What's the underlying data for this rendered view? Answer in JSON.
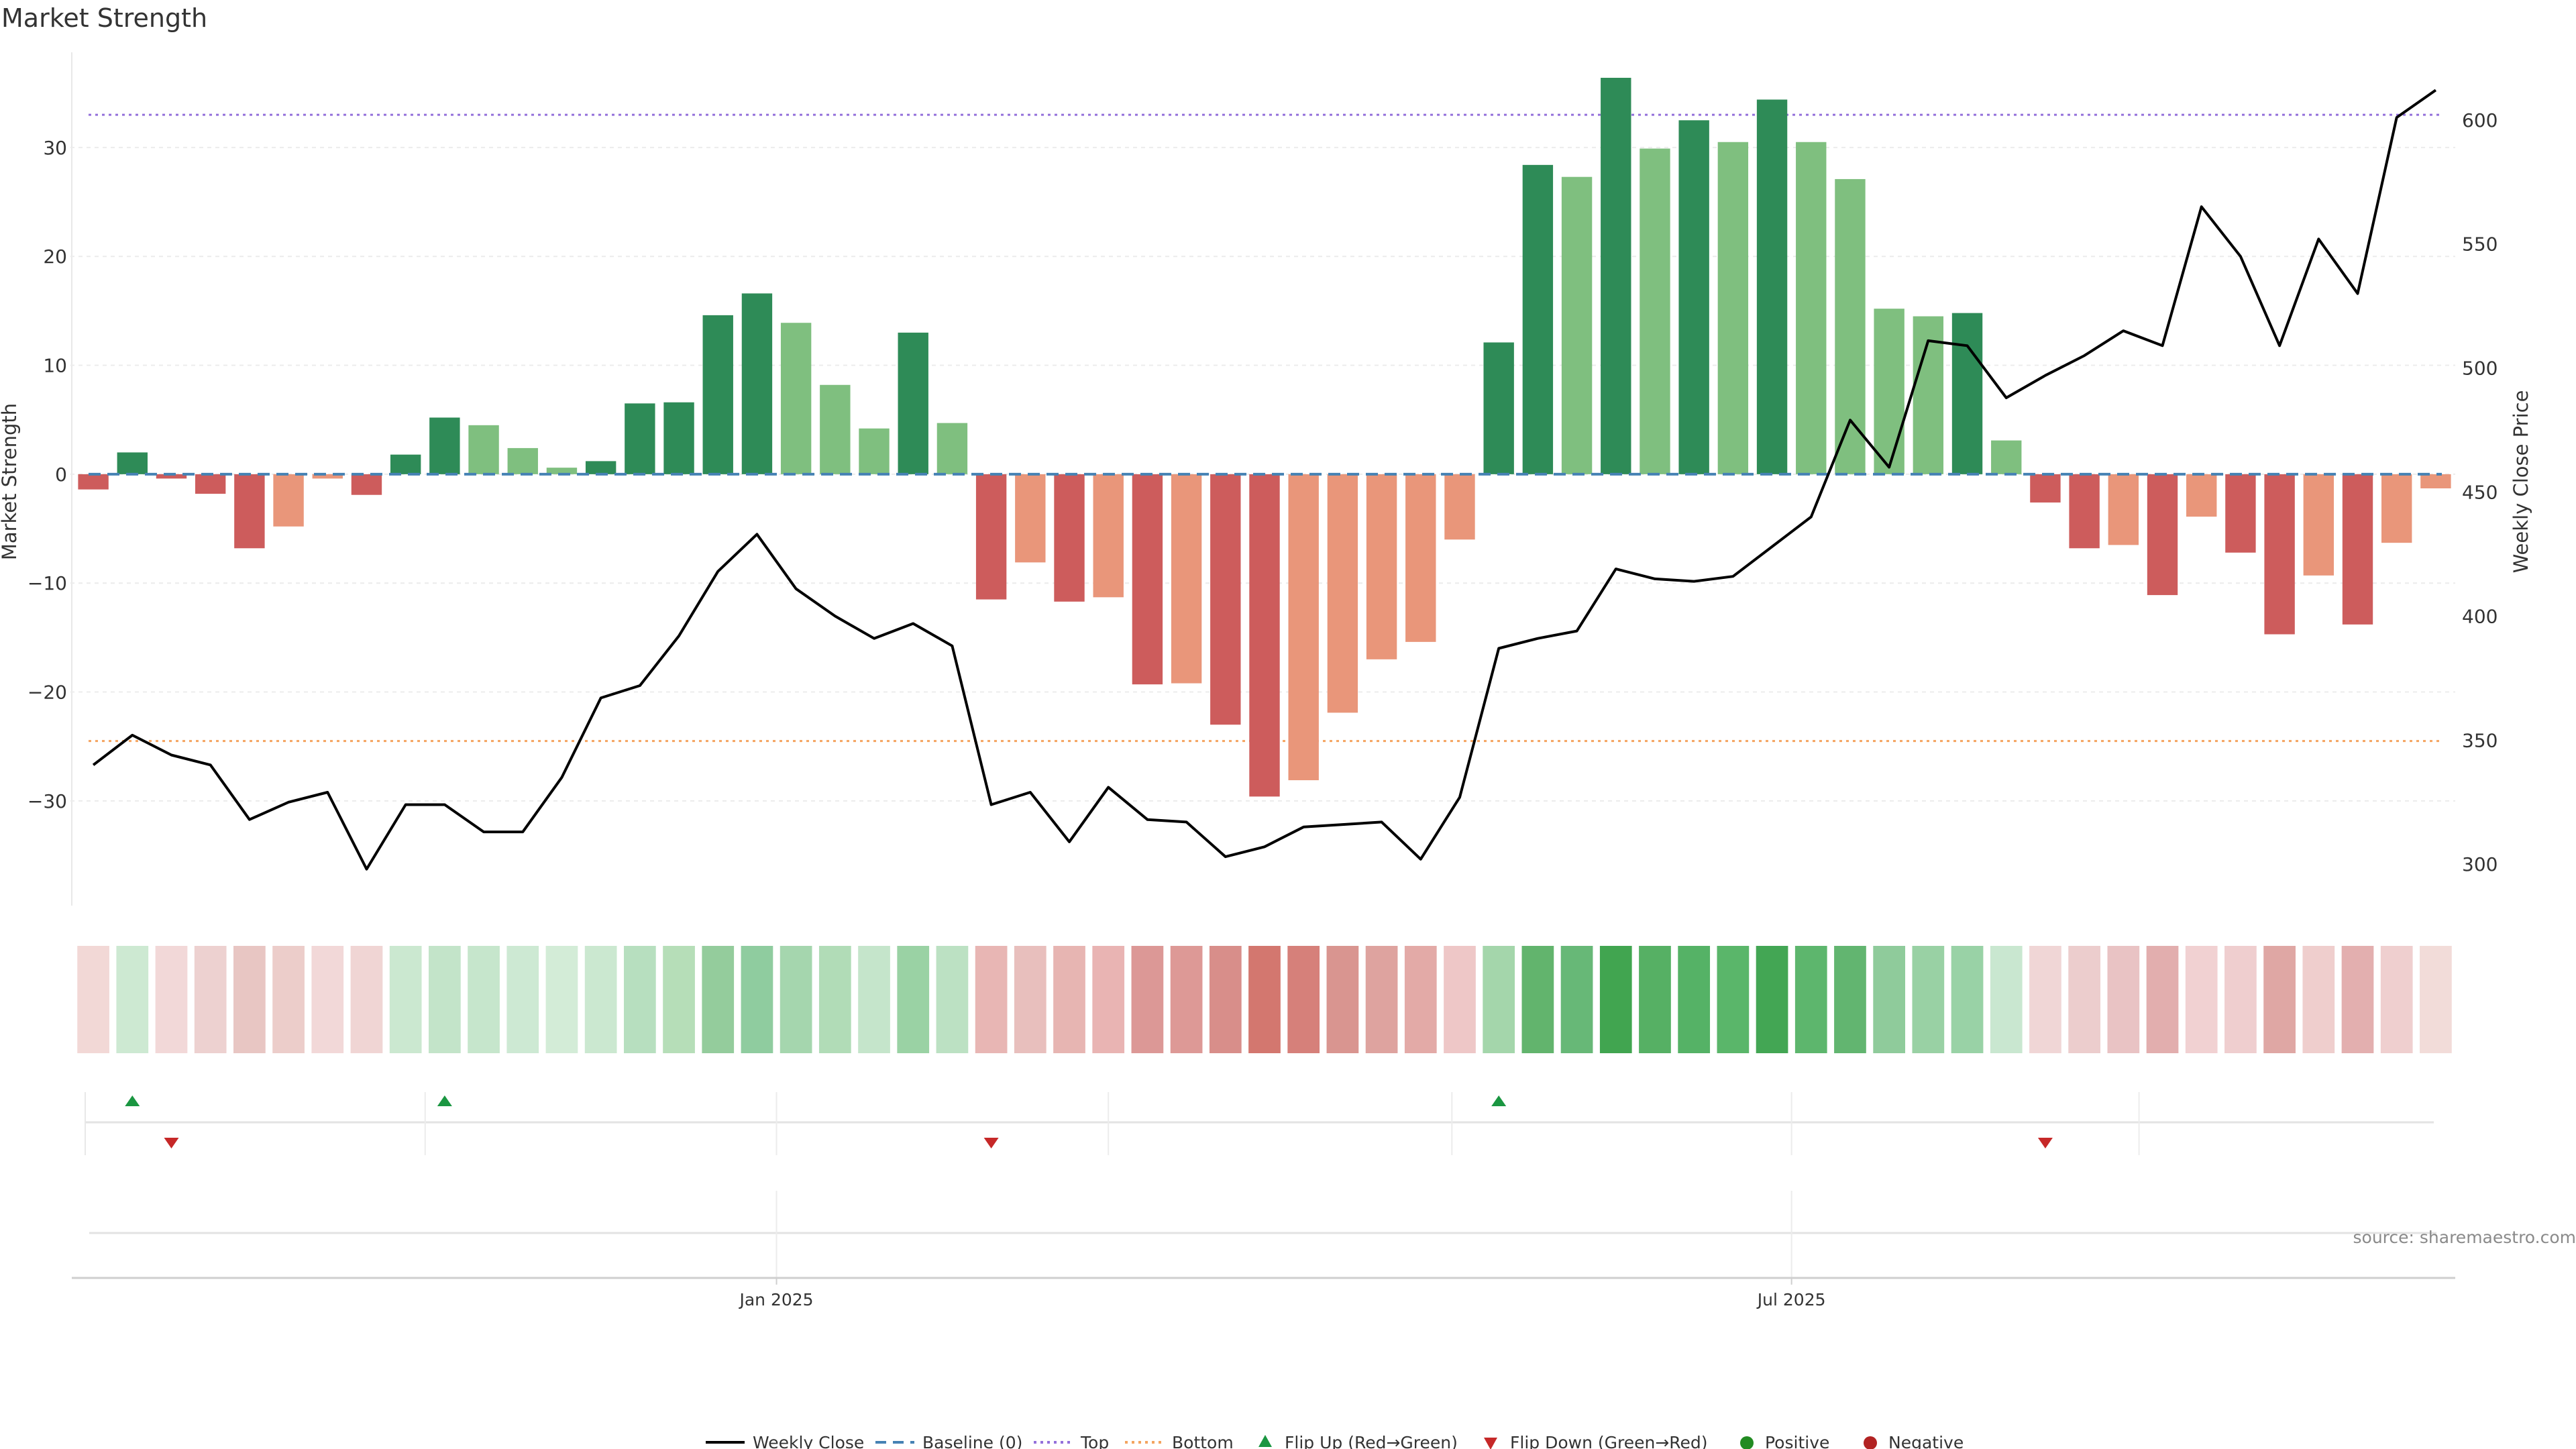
{
  "chart_data": {
    "type": "bar",
    "title": "Market Strength",
    "ylabel": "Market Strength",
    "y2label": "Weekly Close Price",
    "ylim": [
      -39,
      38
    ],
    "y2lim": [
      286,
      624
    ],
    "yticks": [
      30,
      20,
      10,
      0,
      -10,
      -20,
      -30
    ],
    "yticks_labels": [
      "30",
      "20",
      "10",
      "0",
      "−10",
      "−20",
      "−30"
    ],
    "y2ticks": [
      600,
      550,
      500,
      450,
      400,
      350,
      300
    ],
    "y2ticks_labels": [
      "600",
      "550",
      "500",
      "450",
      "400",
      "350",
      "300"
    ],
    "top_line": 33.0,
    "bottom_line": -24.5,
    "baseline": 0,
    "x_ticks": [
      {
        "label": "Jan 2025",
        "index": 17.5
      },
      {
        "label": "Jul 2025",
        "index": 43.5
      }
    ],
    "strength": [
      -1.4,
      2.0,
      -0.4,
      -1.8,
      -6.8,
      -4.8,
      -0.4,
      -1.9,
      1.8,
      5.2,
      4.5,
      2.4,
      0.6,
      1.2,
      6.5,
      6.6,
      14.6,
      16.6,
      13.9,
      8.2,
      4.2,
      13.0,
      4.7,
      -11.5,
      -8.1,
      -11.7,
      -11.3,
      -19.3,
      -19.2,
      -23.0,
      -29.6,
      -28.1,
      -21.9,
      -17.0,
      -15.4,
      -6.0,
      12.1,
      28.4,
      27.3,
      36.4,
      29.9,
      32.5,
      30.5,
      34.4,
      30.5,
      27.1,
      15.2,
      14.5,
      14.8,
      3.1,
      -2.6,
      -6.8,
      -6.5,
      -11.1,
      -3.9,
      -7.2,
      -14.7,
      -9.3,
      -13.8,
      -6.3,
      -1.3
    ],
    "close": [
      340,
      352,
      344,
      340,
      318,
      325,
      329,
      298,
      324,
      324,
      313,
      313,
      335,
      367,
      372,
      392,
      418,
      433,
      411,
      400,
      391,
      397,
      388,
      324,
      329,
      309,
      331,
      318,
      317,
      303,
      307,
      315,
      316,
      317,
      302,
      327,
      387,
      391,
      394,
      419,
      415,
      414,
      416,
      428,
      440,
      479,
      460,
      511,
      509,
      488,
      497,
      505,
      515,
      509,
      565,
      545,
      509,
      552,
      530,
      601,
      612
    ],
    "heat_colors": [
      "#f2d8d6",
      "#cde9d2",
      "#f2d8d8",
      "#edd1d0",
      "#e8c6c3",
      "#eccdca",
      "#f2d8d8",
      "#f0d5d4",
      "#cbe8d0",
      "#c3e4c9",
      "#c6e6cc",
      "#cde9d3",
      "#d3ecd7",
      "#cbe8d0",
      "#b7dfbf",
      "#b6deb8",
      "#94cc9c",
      "#8fcc9f",
      "#a5d6ae",
      "#b1dcb7",
      "#c5e5cb",
      "#9ad2a4",
      "#bce1c3",
      "#e8b6b4",
      "#e8bfbd",
      "#e7b5b2",
      "#e9b4b3",
      "#dc9896",
      "#dd9996",
      "#d88e8a",
      "#d3776f",
      "#d6807a",
      "#d99590",
      "#dea39f",
      "#e3aaa7",
      "#eec7c7",
      "#a4d6ab",
      "#62b46d",
      "#67b877",
      "#41a550",
      "#56b064",
      "#55b266",
      "#5ab66a",
      "#43a654",
      "#5db66d",
      "#62b570",
      "#8fcb9b",
      "#99d1a4",
      "#99d2a6",
      "#c9e7d0",
      "#f0d6d6",
      "#eccdcd",
      "#e9c3c4",
      "#e2aeae",
      "#f1d1d2",
      "#efcecf",
      "#dfa7a4",
      "#efcecd",
      "#e3afaf",
      "#efcfcf",
      "#f2dcd9"
    ],
    "flips_up": [
      1,
      9,
      36
    ],
    "flips_down": [
      2,
      23,
      50
    ],
    "legend": [
      "Weekly Close",
      "Baseline (0)",
      "Top",
      "Bottom",
      "Flip Up (Red→Green)",
      "Flip Down (Green→Red)",
      "Positive",
      "Negative"
    ]
  },
  "colors": {
    "pos_strong": "#2e8b57",
    "pos_light": "#7fbf7f",
    "neg_strong": "#cd5c5c",
    "neg_light": "#e9967a",
    "baseline": "#4682b4",
    "top": "#9370db",
    "bottom": "#f4a460",
    "flip_up": "#1a9641",
    "flip_down": "#c62828",
    "positive_dot": "#228b22",
    "negative_dot": "#b22222",
    "price_line": "#000000"
  },
  "source": "source: sharemaestro.com"
}
